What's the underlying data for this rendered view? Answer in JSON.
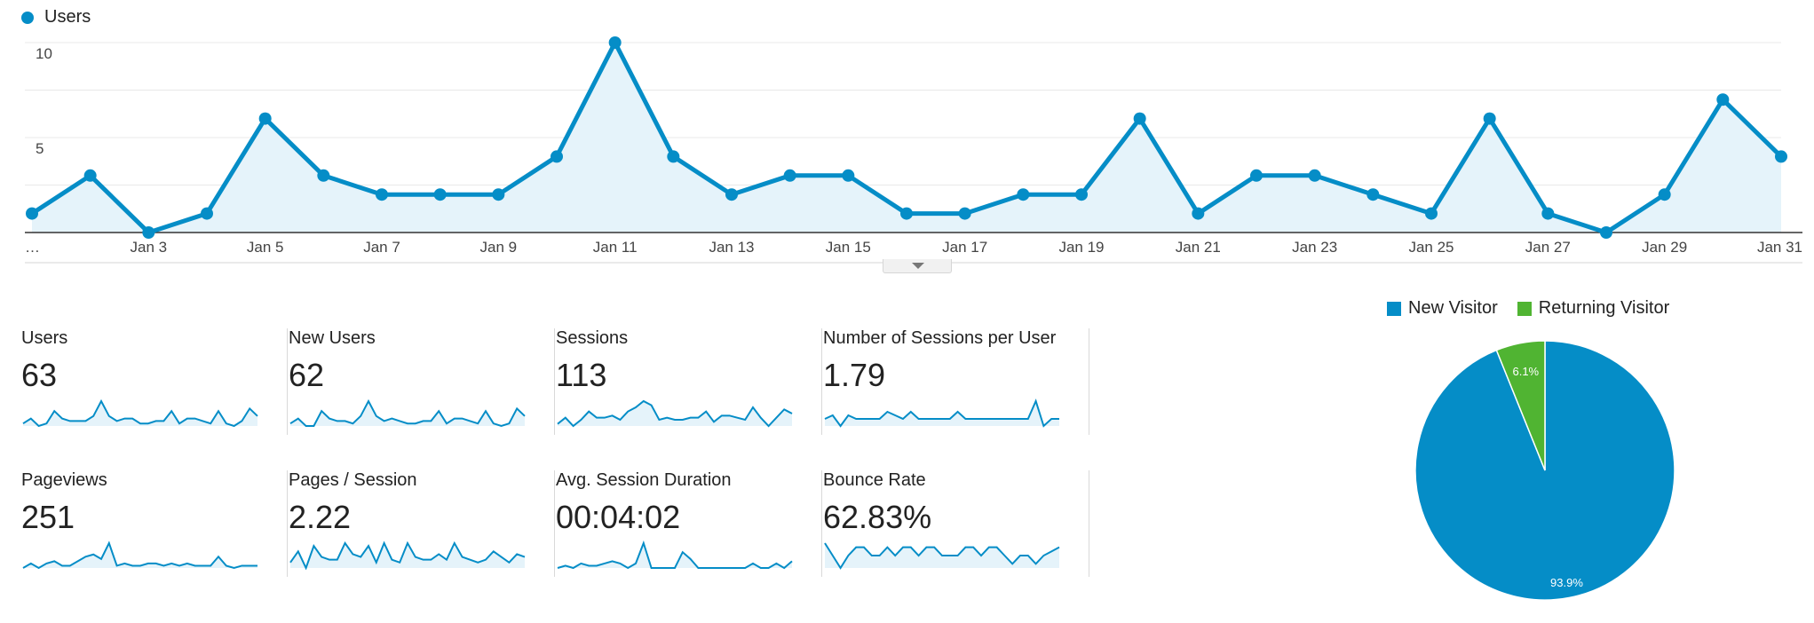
{
  "colors": {
    "series_line": "#058dc7",
    "series_fill": "#e5f3fa",
    "new_visitor": "#058dc7",
    "returning_visitor": "#50b432",
    "grid": "#e8e8e8",
    "axis": "#333333"
  },
  "chart_data": [
    {
      "type": "area",
      "legend": [
        "Users"
      ],
      "series": [
        {
          "name": "Users",
          "x": [
            "Jan 1",
            "Jan 2",
            "Jan 3",
            "Jan 4",
            "Jan 5",
            "Jan 6",
            "Jan 7",
            "Jan 8",
            "Jan 9",
            "Jan 10",
            "Jan 11",
            "Jan 12",
            "Jan 13",
            "Jan 14",
            "Jan 15",
            "Jan 16",
            "Jan 17",
            "Jan 18",
            "Jan 19",
            "Jan 20",
            "Jan 21",
            "Jan 22",
            "Jan 23",
            "Jan 24",
            "Jan 25",
            "Jan 26",
            "Jan 27",
            "Jan 28",
            "Jan 29",
            "Jan 30",
            "Jan 31"
          ],
          "values": [
            1,
            3,
            0,
            1,
            6,
            3,
            2,
            2,
            2,
            4,
            10,
            4,
            2,
            3,
            3,
            1,
            1,
            2,
            2,
            6,
            1,
            3,
            3,
            2,
            1,
            6,
            1,
            0,
            2,
            7,
            4
          ]
        }
      ],
      "x_tick_labels": [
        "…",
        "Jan 3",
        "Jan 5",
        "Jan 7",
        "Jan 9",
        "Jan 11",
        "Jan 13",
        "Jan 15",
        "Jan 17",
        "Jan 19",
        "Jan 21",
        "Jan 23",
        "Jan 25",
        "Jan 27",
        "Jan 29",
        "Jan 31"
      ],
      "y_tick_labels": [
        "5",
        "10"
      ],
      "ylim": [
        0,
        10
      ],
      "grid": true,
      "legend_position": "top-left"
    },
    {
      "type": "pie",
      "legend": [
        "New Visitor",
        "Returning Visitor"
      ],
      "slices": [
        {
          "name": "New Visitor",
          "value": 93.9,
          "label": "93.9%"
        },
        {
          "name": "Returning Visitor",
          "value": 6.1,
          "label": "6.1%"
        }
      ],
      "legend_position": "top"
    }
  ],
  "metrics": [
    {
      "label": "Users",
      "value": "63",
      "spark": [
        1,
        3,
        0,
        1,
        6,
        3,
        2,
        2,
        2,
        4,
        10,
        4,
        2,
        3,
        3,
        1,
        1,
        2,
        2,
        6,
        1,
        3,
        3,
        2,
        1,
        6,
        1,
        0,
        2,
        7,
        4
      ]
    },
    {
      "label": "New Users",
      "value": "62",
      "spark": [
        1,
        3,
        0,
        0,
        6,
        3,
        2,
        2,
        1,
        4,
        10,
        4,
        2,
        3,
        2,
        1,
        1,
        2,
        2,
        6,
        1,
        3,
        3,
        2,
        1,
        6,
        1,
        0,
        1,
        7,
        4
      ]
    },
    {
      "label": "Sessions",
      "value": "113",
      "spark": [
        1,
        4,
        0,
        3,
        7,
        4,
        4,
        5,
        3,
        7,
        9,
        12,
        10,
        3,
        4,
        3,
        3,
        4,
        4,
        7,
        2,
        5,
        5,
        4,
        3,
        9,
        4,
        0,
        4,
        8,
        6
      ]
    },
    {
      "label": "Number of Sessions per User",
      "value": "1.79",
      "spark": [
        2,
        3,
        0,
        3,
        2,
        2,
        2,
        2,
        4,
        3,
        2,
        4,
        2,
        2,
        2,
        2,
        2,
        4,
        2,
        2,
        2,
        2,
        2,
        2,
        2,
        2,
        2,
        7,
        0,
        2,
        2
      ]
    },
    {
      "label": "Pageviews",
      "value": "251",
      "spark": [
        1,
        3,
        1,
        3,
        4,
        2,
        2,
        4,
        6,
        7,
        5,
        12,
        2,
        3,
        2,
        2,
        3,
        3,
        2,
        3,
        2,
        3,
        2,
        2,
        2,
        6,
        2,
        1,
        2,
        2,
        2
      ]
    },
    {
      "label": "Pages / Session",
      "value": "2.22",
      "spark": [
        2,
        6,
        0,
        8,
        4,
        3,
        3,
        9,
        5,
        4,
        8,
        2,
        9,
        3,
        2,
        9,
        4,
        3,
        3,
        5,
        3,
        9,
        4,
        3,
        2,
        3,
        6,
        4,
        2,
        5,
        4
      ]
    },
    {
      "label": "Avg. Session Duration",
      "value": "00:04:02",
      "spark": [
        1,
        2,
        1,
        3,
        2,
        2,
        3,
        4,
        3,
        1,
        3,
        12,
        1,
        1,
        1,
        1,
        8,
        5,
        1,
        1,
        1,
        1,
        1,
        1,
        1,
        3,
        1,
        1,
        3,
        1,
        4
      ]
    },
    {
      "label": "Bounce Rate",
      "value": "62.83%",
      "spark": [
        12,
        6,
        0,
        6,
        10,
        10,
        6,
        6,
        10,
        6,
        10,
        10,
        6,
        10,
        10,
        6,
        6,
        6,
        10,
        10,
        6,
        10,
        10,
        6,
        2,
        6,
        6,
        2,
        6,
        8,
        10
      ]
    }
  ]
}
